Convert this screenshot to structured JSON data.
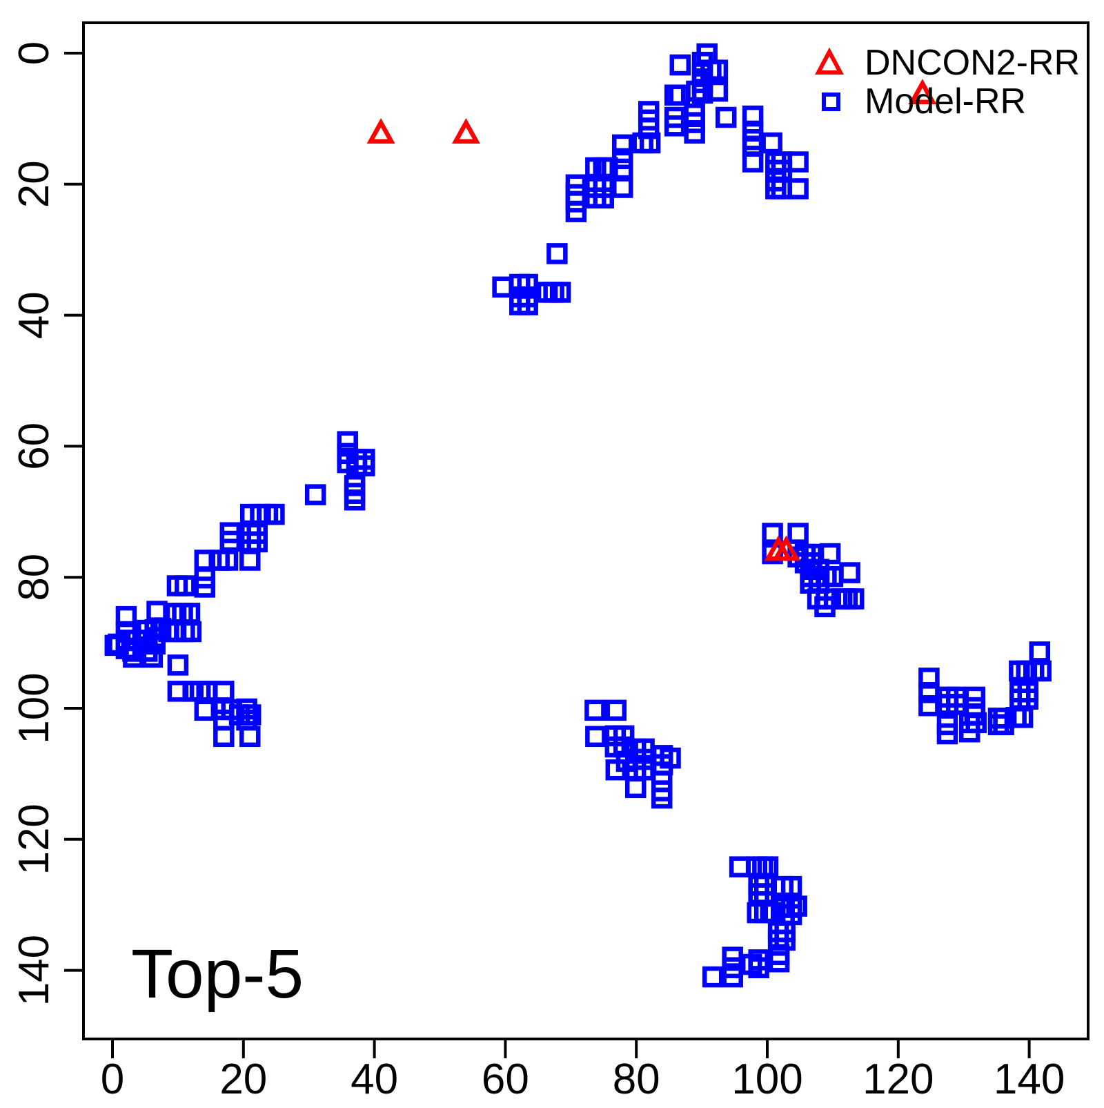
{
  "chart_data": {
    "type": "scatter",
    "title": "",
    "xlabel": "",
    "ylabel": "",
    "annotation": "Top-5",
    "x_ticks": [
      0,
      20,
      40,
      60,
      80,
      100,
      120,
      140
    ],
    "y_ticks": [
      0,
      20,
      40,
      60,
      80,
      100,
      120,
      140
    ],
    "xlim": [
      0,
      145
    ],
    "ylim": [
      0,
      148
    ],
    "y_axis_inverted": true,
    "grid": false,
    "legend_position": "top-right",
    "background_color": "#ffffff",
    "axis_color": "#000000",
    "legend": [
      {
        "label": "DNCON2-RR",
        "marker": "triangle",
        "color": "#FF0000"
      },
      {
        "label": "Model-RR",
        "marker": "square",
        "color": "#0000FF"
      }
    ],
    "series": [
      {
        "name": "DNCON2-RR",
        "marker": "triangle",
        "color": "#FF0000",
        "points": [
          [
            41.0,
            12.3
          ],
          [
            54.0,
            12.3
          ],
          [
            123.7,
            6.3
          ],
          [
            101.7,
            76.0
          ],
          [
            102.9,
            76.0
          ]
        ]
      },
      {
        "name": "Model-RR",
        "marker": "square",
        "color": "#0000FF",
        "points": [
          [
            90.8,
            0.1
          ],
          [
            90.1,
            1.4
          ],
          [
            86.7,
            1.8
          ],
          [
            91.4,
            2.6
          ],
          [
            92.4,
            2.6
          ],
          [
            90.1,
            3.0
          ],
          [
            90.1,
            4.5
          ],
          [
            89.2,
            5.8
          ],
          [
            92.4,
            5.8
          ],
          [
            90.1,
            6.1
          ],
          [
            85.9,
            6.4
          ],
          [
            86.6,
            6.4
          ],
          [
            81.9,
            8.9
          ],
          [
            88.9,
            9.3
          ],
          [
            97.8,
            9.6
          ],
          [
            93.7,
            9.8
          ],
          [
            85.9,
            9.8
          ],
          [
            81.9,
            10.2
          ],
          [
            88.9,
            10.6
          ],
          [
            85.9,
            11.1
          ],
          [
            81.9,
            11.5
          ],
          [
            97.8,
            11.9
          ],
          [
            88.9,
            12.2
          ],
          [
            97.8,
            13.2
          ],
          [
            100.7,
            13.7
          ],
          [
            81.0,
            13.7
          ],
          [
            82.1,
            13.7
          ],
          [
            77.9,
            14.0
          ],
          [
            97.8,
            14.2
          ],
          [
            77.9,
            16.1
          ],
          [
            97.8,
            16.6
          ],
          [
            101.3,
            16.6
          ],
          [
            102.2,
            16.6
          ],
          [
            104.7,
            16.6
          ],
          [
            73.8,
            17.5
          ],
          [
            75.0,
            17.5
          ],
          [
            75.6,
            17.5
          ],
          [
            77.9,
            17.7
          ],
          [
            101.3,
            17.9
          ],
          [
            102.2,
            17.9
          ],
          [
            101.3,
            19.5
          ],
          [
            70.8,
            20.1
          ],
          [
            73.8,
            20.5
          ],
          [
            75.0,
            20.5
          ],
          [
            77.9,
            20.5
          ],
          [
            101.3,
            20.7
          ],
          [
            102.2,
            20.7
          ],
          [
            104.7,
            20.7
          ],
          [
            70.8,
            21.6
          ],
          [
            73.8,
            22.1
          ],
          [
            75.0,
            22.1
          ],
          [
            70.8,
            22.7
          ],
          [
            70.8,
            24.2
          ],
          [
            67.9,
            30.6
          ],
          [
            62.2,
            35.3
          ],
          [
            63.4,
            35.3
          ],
          [
            59.6,
            35.7
          ],
          [
            66.4,
            36.5
          ],
          [
            67.4,
            36.5
          ],
          [
            68.4,
            36.5
          ],
          [
            62.2,
            37.2
          ],
          [
            63.4,
            37.2
          ],
          [
            62.2,
            38.4
          ],
          [
            63.4,
            38.4
          ],
          [
            35.9,
            59.3
          ],
          [
            35.9,
            61.1
          ],
          [
            37.3,
            62.0
          ],
          [
            38.5,
            62.0
          ],
          [
            35.9,
            62.5
          ],
          [
            37.3,
            63.0
          ],
          [
            38.5,
            63.0
          ],
          [
            37.0,
            66.0
          ],
          [
            37.0,
            67.2
          ],
          [
            31.0,
            67.4
          ],
          [
            37.0,
            68.2
          ],
          [
            21.1,
            70.4
          ],
          [
            22.6,
            70.4
          ],
          [
            23.7,
            70.4
          ],
          [
            24.7,
            70.4
          ],
          [
            18.0,
            73.2
          ],
          [
            21.1,
            73.3
          ],
          [
            22.1,
            73.3
          ],
          [
            18.0,
            74.5
          ],
          [
            21.1,
            74.6
          ],
          [
            22.1,
            74.6
          ],
          [
            14.1,
            77.4
          ],
          [
            16.3,
            77.4
          ],
          [
            17.6,
            77.4
          ],
          [
            21.0,
            77.4
          ],
          [
            14.1,
            80.1
          ],
          [
            9.9,
            81.3
          ],
          [
            11.1,
            81.3
          ],
          [
            14.1,
            81.5
          ],
          [
            6.8,
            85.2
          ],
          [
            9.7,
            85.5
          ],
          [
            10.7,
            85.5
          ],
          [
            11.8,
            85.5
          ],
          [
            2.1,
            86.0
          ],
          [
            7.4,
            87.8
          ],
          [
            6.5,
            88.0
          ],
          [
            5.3,
            88.1
          ],
          [
            2.1,
            88.3
          ],
          [
            8.6,
            88.3
          ],
          [
            9.7,
            88.3
          ],
          [
            11.0,
            88.3
          ],
          [
            12.0,
            88.3
          ],
          [
            6.5,
            89.2
          ],
          [
            2.1,
            89.6
          ],
          [
            3.7,
            89.6
          ],
          [
            5.3,
            89.6
          ],
          [
            0.9,
            90.2
          ],
          [
            6.5,
            90.2
          ],
          [
            0.4,
            90.4
          ],
          [
            2.1,
            90.9
          ],
          [
            3.1,
            91.3
          ],
          [
            5.3,
            91.3
          ],
          [
            3.2,
            92.2
          ],
          [
            6.1,
            92.2
          ],
          [
            10.0,
            93.4
          ],
          [
            10.0,
            97.4
          ],
          [
            12.3,
            97.4
          ],
          [
            13.4,
            97.4
          ],
          [
            14.4,
            97.4
          ],
          [
            17.0,
            97.4
          ],
          [
            20.5,
            100.1
          ],
          [
            17.0,
            100.2
          ],
          [
            18.2,
            100.2
          ],
          [
            14.1,
            100.3
          ],
          [
            19.4,
            101.0
          ],
          [
            21.1,
            101.0
          ],
          [
            17.0,
            101.8
          ],
          [
            20.5,
            101.8
          ],
          [
            17.0,
            104.3
          ],
          [
            21.0,
            104.3
          ],
          [
            100.8,
            73.3
          ],
          [
            104.7,
            73.3
          ],
          [
            100.8,
            76.4
          ],
          [
            109.6,
            76.4
          ],
          [
            105.8,
            76.5
          ],
          [
            106.8,
            76.5
          ],
          [
            104.7,
            76.9
          ],
          [
            105.8,
            77.8
          ],
          [
            106.8,
            77.8
          ],
          [
            106.6,
            78.8
          ],
          [
            107.9,
            78.8
          ],
          [
            112.6,
            79.3
          ],
          [
            106.6,
            79.9
          ],
          [
            107.9,
            79.9
          ],
          [
            109.0,
            79.9
          ],
          [
            110.0,
            79.9
          ],
          [
            106.6,
            80.9
          ],
          [
            107.9,
            80.9
          ],
          [
            107.7,
            83.3
          ],
          [
            109.0,
            83.3
          ],
          [
            111.4,
            83.3
          ],
          [
            112.2,
            83.3
          ],
          [
            113.2,
            83.3
          ],
          [
            108.8,
            84.5
          ],
          [
            73.7,
            100.3
          ],
          [
            76.9,
            100.3
          ],
          [
            76.8,
            104.2
          ],
          [
            78.1,
            104.2
          ],
          [
            73.8,
            104.3
          ],
          [
            76.8,
            105.9
          ],
          [
            78.1,
            105.9
          ],
          [
            79.9,
            106.2
          ],
          [
            81.2,
            106.2
          ],
          [
            84.0,
            107.2
          ],
          [
            85.2,
            107.6
          ],
          [
            79.9,
            107.8
          ],
          [
            81.2,
            107.8
          ],
          [
            78.5,
            108.1
          ],
          [
            84.0,
            108.6
          ],
          [
            76.9,
            109.4
          ],
          [
            79.9,
            109.4
          ],
          [
            81.2,
            109.4
          ],
          [
            83.9,
            111.2
          ],
          [
            79.9,
            112.1
          ],
          [
            83.9,
            112.6
          ],
          [
            83.9,
            113.7
          ],
          [
            95.8,
            124.2
          ],
          [
            98.4,
            124.2
          ],
          [
            99.3,
            124.2
          ],
          [
            100.1,
            124.2
          ],
          [
            98.7,
            127.0
          ],
          [
            99.6,
            127.0
          ],
          [
            102.4,
            127.2
          ],
          [
            103.7,
            127.2
          ],
          [
            98.7,
            128.3
          ],
          [
            99.6,
            128.3
          ],
          [
            104.5,
            130.2
          ],
          [
            102.6,
            130.4
          ],
          [
            103.7,
            130.4
          ],
          [
            98.5,
            131.2
          ],
          [
            99.6,
            131.2
          ],
          [
            100.5,
            131.2
          ],
          [
            102.6,
            131.5
          ],
          [
            103.7,
            131.5
          ],
          [
            101.7,
            134.1
          ],
          [
            102.7,
            134.1
          ],
          [
            101.7,
            135.4
          ],
          [
            102.7,
            135.4
          ],
          [
            101.8,
            137.6
          ],
          [
            94.7,
            138.0
          ],
          [
            98.7,
            138.4
          ],
          [
            101.8,
            138.7
          ],
          [
            97.6,
            139.1
          ],
          [
            94.7,
            139.6
          ],
          [
            98.7,
            139.6
          ],
          [
            91.7,
            141.0
          ],
          [
            94.7,
            141.0
          ],
          [
            141.6,
            91.4
          ],
          [
            138.5,
            94.3
          ],
          [
            139.6,
            94.3
          ],
          [
            140.7,
            94.3
          ],
          [
            141.8,
            94.3
          ],
          [
            124.7,
            95.4
          ],
          [
            138.6,
            97.5
          ],
          [
            139.8,
            97.5
          ],
          [
            124.7,
            97.6
          ],
          [
            127.6,
            98.3
          ],
          [
            128.9,
            98.3
          ],
          [
            131.7,
            98.3
          ],
          [
            138.6,
            98.6
          ],
          [
            139.8,
            98.6
          ],
          [
            127.6,
            99.4
          ],
          [
            128.9,
            99.4
          ],
          [
            124.7,
            99.6
          ],
          [
            131.7,
            99.9
          ],
          [
            131.7,
            101.0
          ],
          [
            138.0,
            101.4
          ],
          [
            139.0,
            101.4
          ],
          [
            135.3,
            101.5
          ],
          [
            136.1,
            101.5
          ],
          [
            130.9,
            102.2
          ],
          [
            131.9,
            102.2
          ],
          [
            127.5,
            102.5
          ],
          [
            135.3,
            102.5
          ],
          [
            136.1,
            102.5
          ],
          [
            130.9,
            103.6
          ],
          [
            127.5,
            103.9
          ]
        ]
      }
    ]
  }
}
